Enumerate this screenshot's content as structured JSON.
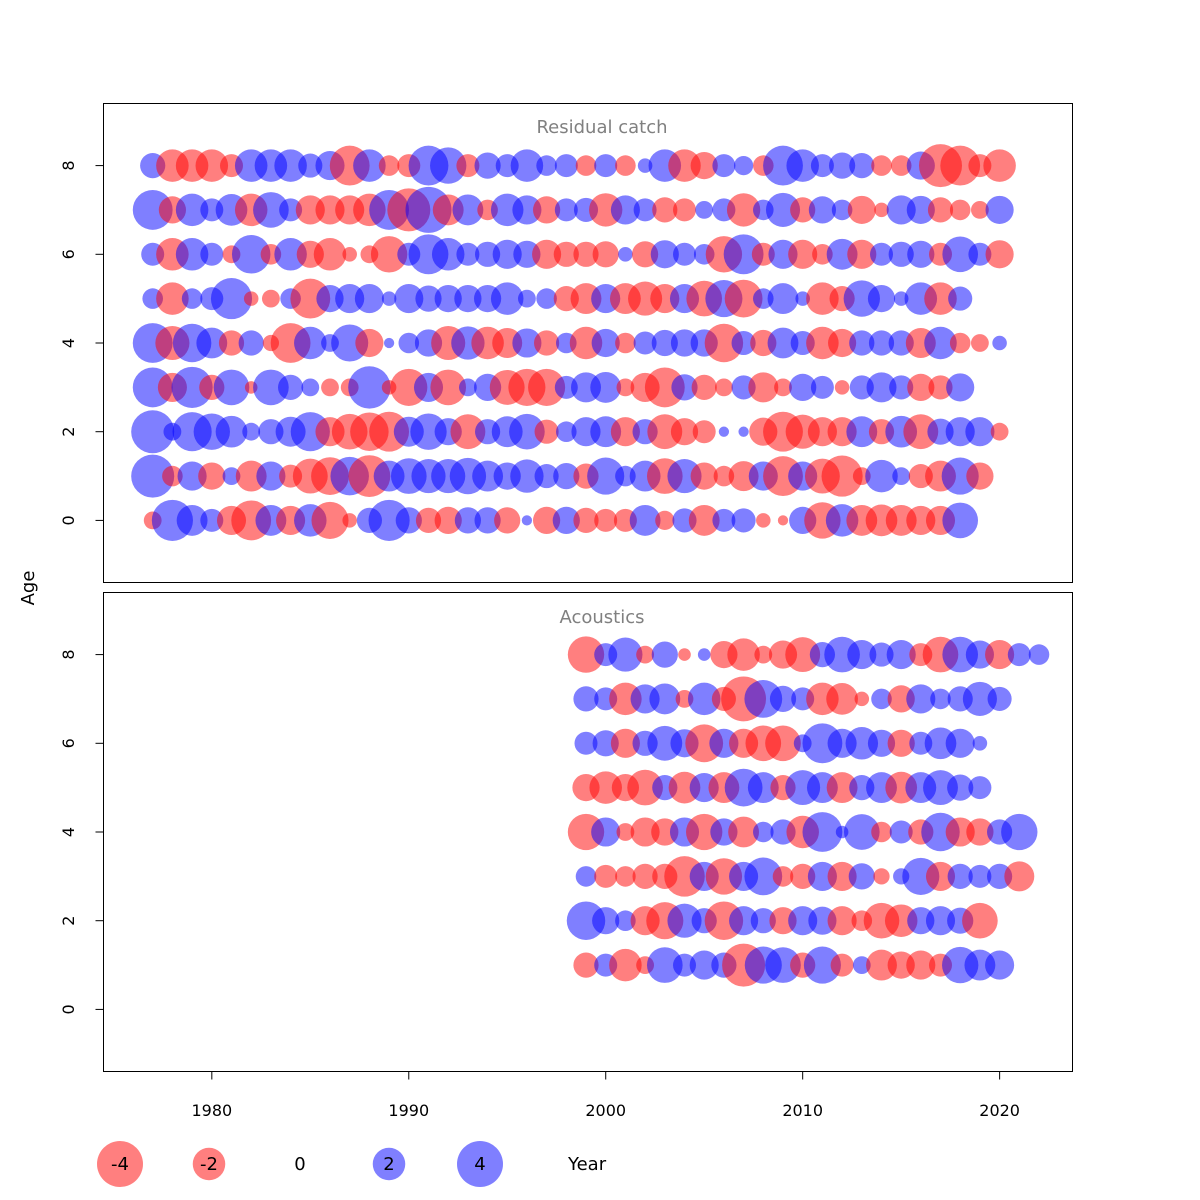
{
  "chart_data": {
    "type": "scatter",
    "xlabel": "Year",
    "ylabel": "Age",
    "xlim": [
      1974.5,
      2023.7
    ],
    "ylim": [
      -1.4,
      9.4
    ],
    "xticks": [
      1980,
      1990,
      2000,
      2010,
      2020
    ],
    "yticks": [
      0,
      2,
      4,
      6,
      8
    ],
    "colors": {
      "negative": "#ff0000",
      "positive": "#0000ff",
      "opacity": 0.5,
      "title": "#808080"
    },
    "legend": {
      "position": "bottom",
      "items": [
        {
          "value": -4,
          "label": "-4"
        },
        {
          "value": -2,
          "label": "-2"
        },
        {
          "value": 0,
          "label": "0"
        },
        {
          "value": 2,
          "label": "2"
        },
        {
          "value": 4,
          "label": "4"
        }
      ]
    },
    "panels": [
      {
        "title": "Residual catch",
        "year_start": 1977,
        "ages": [
          8,
          7,
          6,
          5,
          4,
          3,
          2,
          1,
          0
        ],
        "residuals": {
          "8": [
            1.2,
            -2,
            -2,
            -2,
            -1,
            2,
            2,
            2,
            1.1,
            1.6,
            -3,
            2,
            -0.8,
            -1,
            3,
            2.5,
            -1,
            1.3,
            1,
            2,
            0.8,
            1,
            -0.8,
            1,
            -0.8,
            0.4,
            2,
            -2,
            -1.4,
            1,
            0.7,
            -0.8,
            3,
            2,
            1,
            1.3,
            1.2,
            -0.8,
            -0.8,
            1.5,
            -3.5,
            -3,
            -1,
            -2
          ],
          "7": [
            3,
            -1.4,
            2,
            1,
            1.9,
            -2,
            2.4,
            1,
            -1.6,
            -1.6,
            -1.6,
            -2,
            3,
            -3.5,
            4,
            -1.8,
            1.8,
            -0.8,
            2,
            1.6,
            -1.4,
            1,
            1.1,
            -2.1,
            1.6,
            1,
            -1.2,
            -1,
            0.6,
            1,
            -2.1,
            0.8,
            2.2,
            -1.2,
            1.4,
            0.8,
            -1.5,
            -0.4,
            1.6,
            1.5,
            -1.2,
            -0.8,
            -0.6,
            1.5
          ],
          "6": [
            1,
            -2,
            2,
            1,
            -0.6,
            2.8,
            -0.8,
            2,
            -1.4,
            -2,
            -0.4,
            -0.6,
            -2.5,
            1,
            3,
            2,
            1,
            1.2,
            1.6,
            1.4,
            -1.6,
            -1.2,
            -1.2,
            -1.3,
            0.4,
            -1.3,
            1.5,
            1,
            0.8,
            -2.5,
            3,
            -1,
            1.6,
            -1.6,
            -0.8,
            1.8,
            -1.6,
            1,
            1.2,
            1.4,
            -1,
            2.4,
            1,
            -1.5
          ],
          "5": [
            0.8,
            -2,
            0.8,
            1,
            3.2,
            -0.4,
            -0.6,
            0.8,
            -3,
            1.4,
            1.6,
            1.6,
            0.4,
            1.6,
            1.3,
            1.4,
            1.4,
            1.4,
            2,
            0.6,
            0.8,
            -1.2,
            -1.8,
            1.6,
            -1.8,
            -2.2,
            -1.6,
            1.6,
            -2.4,
            2.6,
            -2.7,
            0.8,
            1.8,
            0.4,
            -2,
            -1.2,
            2.5,
            1.4,
            0.4,
            2,
            -2,
            1.1
          ],
          "4": [
            3,
            -2.2,
            2.8,
            1.8,
            -1.2,
            1.2,
            -0.5,
            -3,
            2,
            0.6,
            2.6,
            -1.5,
            0.2,
            0.8,
            1.4,
            -2.2,
            2.1,
            -2,
            -1.7,
            1.6,
            -1.2,
            0.8,
            -2,
            1.5,
            -0.8,
            1,
            1.3,
            1.4,
            1.4,
            -2.8,
            1.1,
            -1.3,
            1.8,
            1.1,
            -2,
            -1.5,
            1.2,
            1.2,
            1.2,
            -1.7,
            2,
            -0.8,
            -0.6,
            0.4
          ],
          "3": [
            3,
            -1.6,
            3.2,
            -1.2,
            2.4,
            -0.3,
            2.4,
            1.2,
            0.6,
            -0.6,
            -0.6,
            3.4,
            -0.4,
            -2.6,
            1.6,
            -2.4,
            0.6,
            1.4,
            -2.3,
            -2.6,
            -2.6,
            1,
            1.7,
            1.8,
            -0.6,
            -1.6,
            -3,
            1.3,
            -1.2,
            -0.6,
            1.1,
            -1.7,
            -0.6,
            1.4,
            1,
            -0.4,
            1.1,
            1.7,
            1.1,
            -1.4,
            -1.1,
            1.5
          ],
          "2": [
            3.5,
            0.6,
            2.9,
            2.5,
            1.9,
            0.6,
            1.2,
            1.7,
            2.9,
            -1.6,
            -2.4,
            -2.8,
            -3,
            1.7,
            2.5,
            1.4,
            -2.3,
            1.2,
            1.8,
            2.4,
            -1.1,
            0.8,
            1.6,
            1.8,
            -1.6,
            1.2,
            -2.3,
            -1.4,
            -1,
            0.2,
            0.2,
            -1.5,
            -3,
            -2.2,
            -1.6,
            -1.6,
            1.8,
            -1.2,
            1.9,
            -2.3,
            1.3,
            1.6,
            1.6,
            -0.6
          ],
          "1": [
            3.5,
            -0.8,
            1.6,
            -1.4,
            0.6,
            -1.8,
            1.6,
            -1,
            -2.3,
            -2.7,
            2.8,
            -3.3,
            1.8,
            2.4,
            2.2,
            2.2,
            2.5,
            1.8,
            1.4,
            2.1,
            1.1,
            1.3,
            -1.2,
            2.6,
            0.8,
            1.8,
            -2.4,
            2.2,
            -1.4,
            -0.8,
            -1.7,
            1.6,
            -3,
            1.6,
            -2.3,
            -3.2,
            -0.6,
            2,
            0.6,
            -1.1,
            -1.8,
            2.6,
            -1.4
          ],
          "0": [
            -0.6,
            3.2,
            1.8,
            1,
            -1.6,
            -3,
            1.8,
            -1.6,
            2,
            -2.6,
            -0.4,
            1.2,
            3.2,
            1.3,
            -1.2,
            -1.4,
            1.3,
            1.3,
            -1.3,
            0.2,
            -1.4,
            1.4,
            -1.2,
            -1,
            -1,
            1.8,
            -0.7,
            1.1,
            -1.8,
            1,
            1.1,
            -0.4,
            -0.2,
            1.4,
            -2.5,
            2,
            -1.8,
            -1.9,
            -1.8,
            -1.6,
            -1.6,
            2.4
          ]
        }
      },
      {
        "title": "Acoustics",
        "year_start": 1999,
        "ages": [
          8,
          7,
          6,
          5,
          4,
          3,
          2,
          1
        ],
        "residuals": {
          "8": [
            -2.5,
            1,
            2.2,
            -0.6,
            1.3,
            -0.3,
            0.3,
            -1.4,
            -2,
            -0.6,
            -1.5,
            -2.3,
            1.2,
            2.4,
            1.6,
            1.1,
            1.6,
            -1,
            -2.4,
            2.4,
            1.5,
            -1.6,
            1,
            0.8
          ],
          "7": [
            1.2,
            1,
            -2,
            1.6,
            1.8,
            -0.6,
            2,
            -1.1,
            -3.8,
            2.7,
            1.3,
            1,
            -2,
            -1.9,
            -0.4,
            0.8,
            -1.4,
            1.6,
            0.8,
            1.2,
            2.2,
            1.1
          ],
          "6": [
            1,
            1.3,
            -1.6,
            1.2,
            2.3,
            1.5,
            -2.7,
            1.6,
            -1.6,
            -2.4,
            -2.4,
            0.6,
            3,
            1.6,
            2,
            1.4,
            -1.4,
            1,
            1.9,
            1.6,
            0.4
          ],
          "5": [
            -1.4,
            -2,
            -1.4,
            -2.4,
            1.2,
            -1.9,
            1.6,
            -1.8,
            2.7,
            1.8,
            -1.2,
            2.3,
            1.8,
            -1.8,
            1.2,
            1.8,
            -1.9,
            1.8,
            2.3,
            1.3,
            1
          ],
          "4": [
            -2.5,
            1.6,
            -0.6,
            -1.6,
            -1.4,
            1.6,
            -2.5,
            1.4,
            -1.8,
            0.8,
            1.2,
            -2,
            3,
            0.3,
            2.4,
            -0.8,
            1,
            -1.2,
            2.8,
            -1.6,
            -1.4,
            1.2,
            2.5
          ],
          "3": [
            0.8,
            -1,
            -0.8,
            -1.2,
            -1.2,
            -3.1,
            1.6,
            -2.5,
            1.6,
            2.7,
            -0.8,
            -1.2,
            1.6,
            -1.6,
            1.3,
            -0.5,
            0.5,
            2.6,
            -1.6,
            1.2,
            1,
            1.2,
            -1.7
          ],
          "2": [
            2.8,
            1.4,
            0.8,
            -1.6,
            -2.6,
            2.2,
            1.2,
            -2.8,
            1.6,
            1.2,
            -1.4,
            1.6,
            1.5,
            -1.6,
            -0.8,
            -2.4,
            -2,
            1.4,
            1.6,
            1.3,
            -2.4
          ],
          "1": [
            -1.2,
            1,
            -2,
            -0.6,
            2.4,
            1,
            1.6,
            1.2,
            -3.5,
            2.6,
            2.4,
            -1.2,
            2.6,
            -1,
            0.6,
            -1.8,
            -1.4,
            -1.6,
            -1,
            2.5,
            1.8,
            1.6
          ]
        }
      }
    ]
  }
}
